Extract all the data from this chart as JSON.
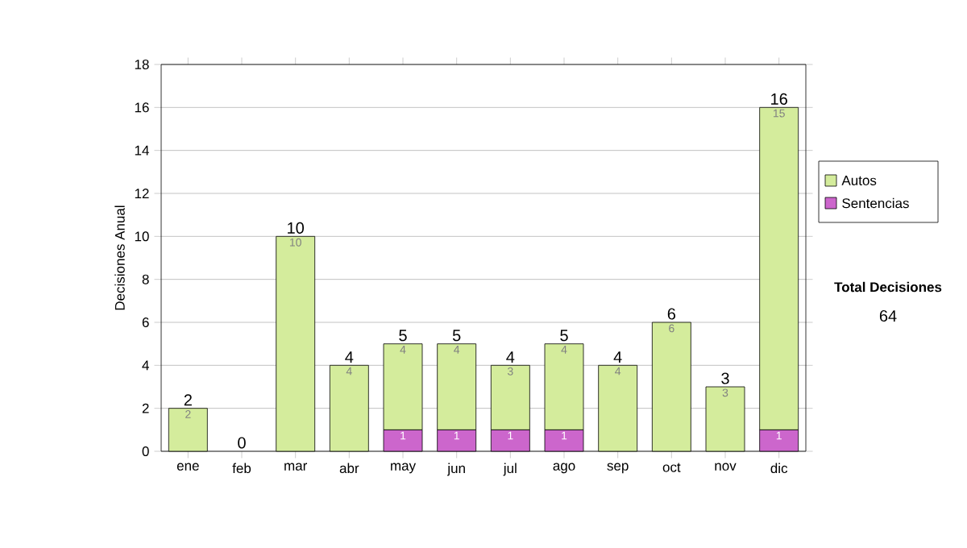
{
  "chart_data": {
    "type": "bar",
    "stacked": true,
    "ylabel": "Decisiones Anual",
    "categories": [
      "ene",
      "feb",
      "mar",
      "abr",
      "may",
      "jun",
      "jul",
      "ago",
      "sep",
      "oct",
      "nov",
      "dic"
    ],
    "series": [
      {
        "name": "Sentencias",
        "color": "#cc66cc",
        "values": [
          0,
          0,
          0,
          0,
          1,
          1,
          1,
          1,
          0,
          0,
          0,
          1
        ],
        "value_labels": [
          null,
          null,
          null,
          null,
          "1",
          "1",
          "1",
          "1",
          null,
          null,
          null,
          "1"
        ]
      },
      {
        "name": "Autos",
        "color": "#d4ec9c",
        "values": [
          2,
          0,
          10,
          4,
          4,
          4,
          3,
          4,
          4,
          6,
          3,
          15
        ],
        "value_labels": [
          "2",
          null,
          "10",
          "4",
          "4",
          "4",
          "3",
          "4",
          "4",
          "6",
          "3",
          "15"
        ]
      }
    ],
    "totals": [
      "2",
      "0",
      "10",
      "4",
      "5",
      "5",
      "4",
      "5",
      "4",
      "6",
      "3",
      "16"
    ],
    "ylim": [
      0,
      18
    ],
    "yticks": [
      0,
      2,
      4,
      6,
      8,
      10,
      12,
      14,
      16,
      18
    ],
    "grid": "y",
    "legend": "right",
    "annotations": [
      "Total Decisiones",
      "64"
    ]
  }
}
